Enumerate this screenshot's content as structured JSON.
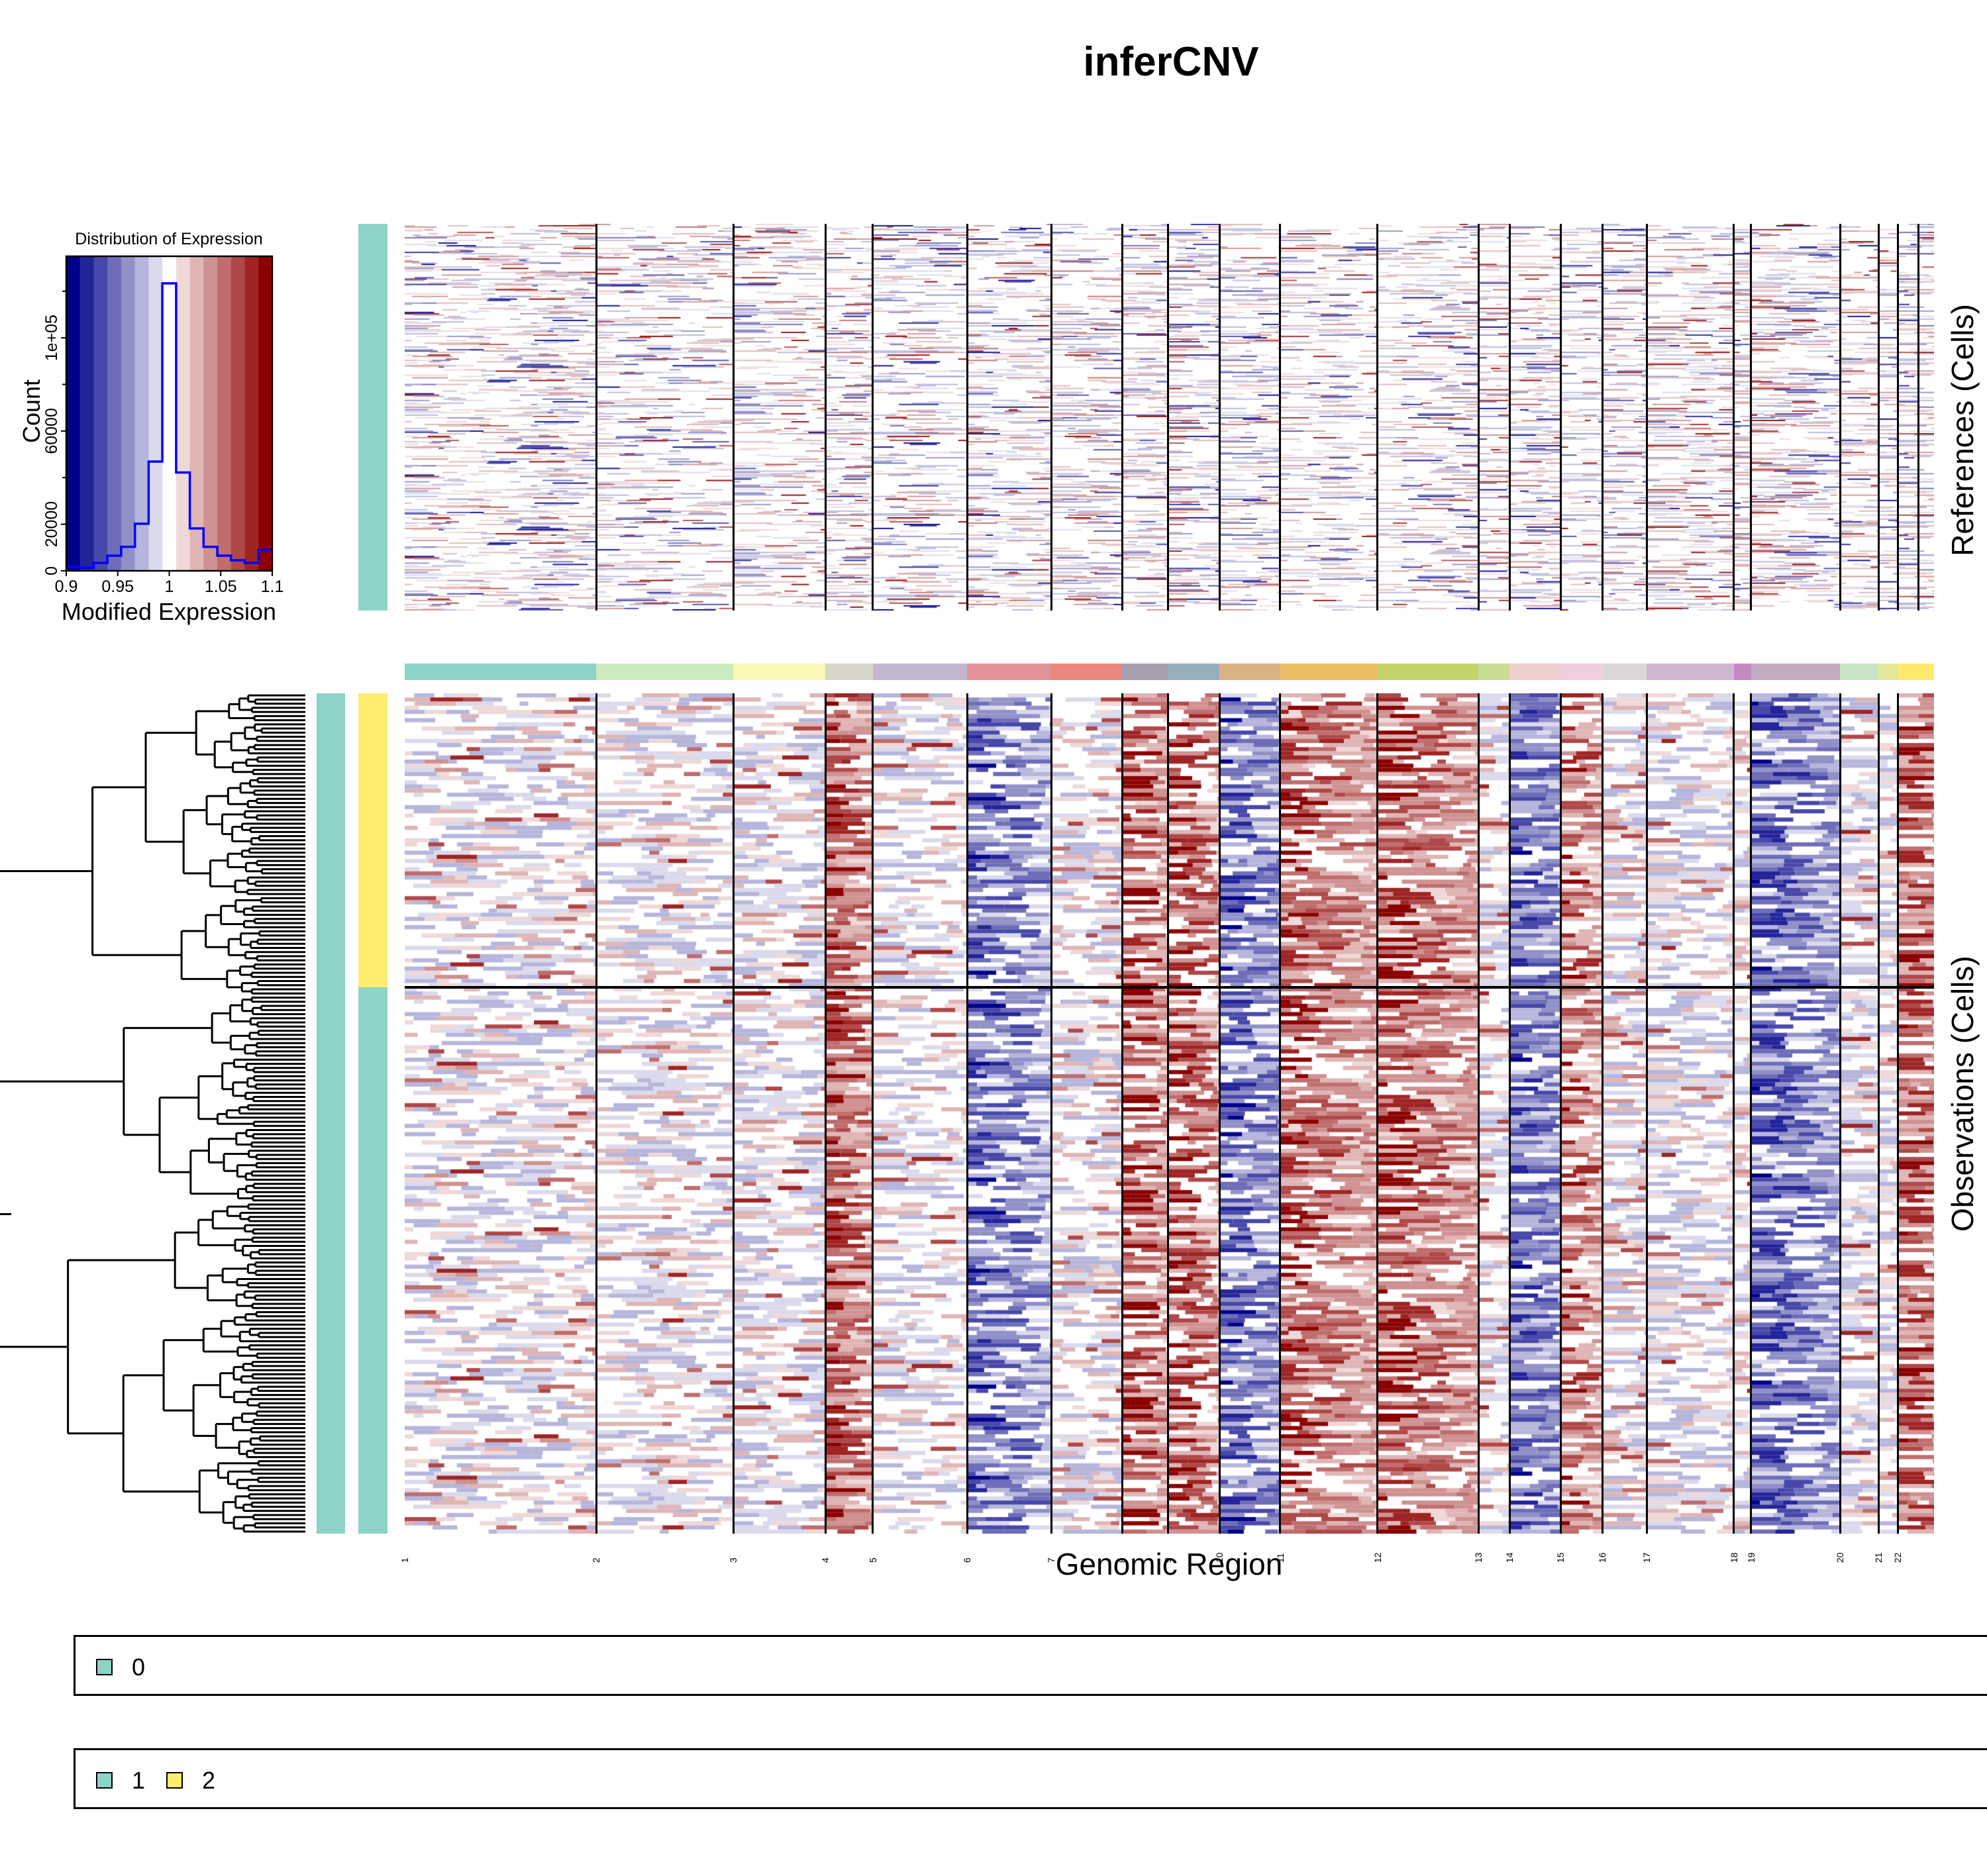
{
  "title": "inferCNV",
  "chart_data": {
    "type": "heatmap",
    "title": "inferCNV",
    "xlabel": "Genomic Region",
    "ref_ylabel": "References (Cells)",
    "obs_ylabel": "Observations (Cells)",
    "color_scale": {
      "min": 0.9,
      "max": 1.1,
      "center": 1.0,
      "palette": [
        "#00008B",
        "#24249A",
        "#4848AA",
        "#6D6DB9",
        "#9191C8",
        "#B6B6DC",
        "#DADAEC",
        "#FFFFFF",
        "#EFD8D8",
        "#DFB5B5",
        "#CF9191",
        "#BF6D6D",
        "#AF4848",
        "#9F2424",
        "#8B0000"
      ]
    },
    "histogram": {
      "type": "line",
      "title": "Distribution of Expression",
      "xlabel": "Modified Expression",
      "ylabel": "Count",
      "xlim": [
        0.9,
        1.1
      ],
      "ylim": [
        0,
        135000
      ],
      "x_ticks": [
        "0.9",
        "0.95",
        "1",
        "1.05",
        "1.1"
      ],
      "x_tick_values": [
        0.9,
        0.95,
        1.0,
        1.05,
        1.1
      ],
      "y_ticks": [
        "0",
        "20000",
        "60000",
        "1e+05"
      ],
      "y_tick_values": [
        0,
        20000,
        60000,
        100000
      ],
      "y_minor_tick_values": [
        40000,
        80000,
        120000
      ],
      "bin_edges": [
        0.9,
        0.9133,
        0.9267,
        0.94,
        0.9533,
        0.9667,
        0.98,
        0.9933,
        1.0067,
        1.02,
        1.0333,
        1.0467,
        1.06,
        1.0733,
        1.0867,
        1.1
      ],
      "counts": [
        1700,
        1300,
        3400,
        6500,
        10300,
        20200,
        46900,
        123400,
        42200,
        18200,
        10300,
        6500,
        4500,
        3400,
        9000
      ],
      "line_color": "#0000FF"
    },
    "chromosomes": [
      {
        "label": "1",
        "start": 0.0,
        "end": 0.0641,
        "color": "#8DD3C7"
      },
      {
        "label": "2",
        "start": 0.0641,
        "end": 0.1101,
        "color": "#CCEBC0"
      },
      {
        "label": "3",
        "start": 0.1101,
        "end": 0.1409,
        "color": "#F9F9B5"
      },
      {
        "label": "4",
        "start": 0.1409,
        "end": 0.1567,
        "color": "#D9D7CB"
      },
      {
        "label": "5",
        "start": 0.1567,
        "end": 0.1884,
        "color": "#C4B5D1"
      },
      {
        "label": "6",
        "start": 0.1884,
        "end": 0.2165,
        "color": "#E39398"
      },
      {
        "label": "7",
        "start": 0.2165,
        "end": 0.2403,
        "color": "#EB877D"
      },
      {
        "label": "8",
        "start": 0.2403,
        "end": 0.2555,
        "color": "#A79EAF"
      },
      {
        "label": "9",
        "start": 0.2555,
        "end": 0.2728,
        "color": "#98AFBB"
      },
      {
        "label": "10",
        "start": 0.2728,
        "end": 0.2931,
        "color": "#DAB385"
      },
      {
        "label": "11",
        "start": 0.2931,
        "end": 0.3258,
        "color": "#EBBD63"
      },
      {
        "label": "12",
        "start": 0.3258,
        "end": 0.3596,
        "color": "#C4D46B"
      },
      {
        "label": "13",
        "start": 0.3596,
        "end": 0.37,
        "color": "#C9DB95"
      },
      {
        "label": "14",
        "start": 0.37,
        "end": 0.3871,
        "color": "#EED1CD"
      },
      {
        "label": "15",
        "start": 0.3871,
        "end": 0.401,
        "color": "#EFD0E1"
      },
      {
        "label": "16",
        "start": 0.401,
        "end": 0.4159,
        "color": "#DDD7D7"
      },
      {
        "label": "17",
        "start": 0.4159,
        "end": 0.4451,
        "color": "#CFB7CF"
      },
      {
        "label": "18",
        "start": 0.4451,
        "end": 0.4508,
        "color": "#C38AC1"
      },
      {
        "label": "19",
        "start": 0.4508,
        "end": 0.4807,
        "color": "#C4ABBF"
      },
      {
        "label": "20",
        "start": 0.4807,
        "end": 0.4935,
        "color": "#CCE5C8"
      },
      {
        "label": "21",
        "start": 0.4935,
        "end": 0.5,
        "color": "#E3E89D"
      },
      {
        "label": "22",
        "start": 0.5,
        "end": 0.5121,
        "color": "#FDE96C"
      }
    ],
    "references": {
      "group": "0",
      "approx_cells": 290
    },
    "observations": {
      "groups": [
        {
          "name": "2",
          "approx_cells": 71
        },
        {
          "name": "1",
          "approx_cells": 132
        }
      ],
      "dendrogram": true,
      "chromosome_trends": {
        "8": "gain",
        "9": "gain",
        "10": "loss",
        "11": "gain",
        "14": "loss",
        "15": "gain",
        "6": "loss",
        "4": "gain",
        "12": "gain",
        "22": "gain",
        "19": "loss"
      }
    }
  },
  "legends": [
    {
      "items": [
        {
          "label": "0",
          "color": "#8DD3C7"
        }
      ]
    },
    {
      "items": [
        {
          "label": "1",
          "color": "#8DD3C7"
        },
        {
          "label": "2",
          "color": "#FFED6F"
        }
      ]
    }
  ],
  "annotation_colors": {
    "0": "#8DD3C7",
    "1": "#8DD3C7",
    "2": "#FFED6F"
  }
}
